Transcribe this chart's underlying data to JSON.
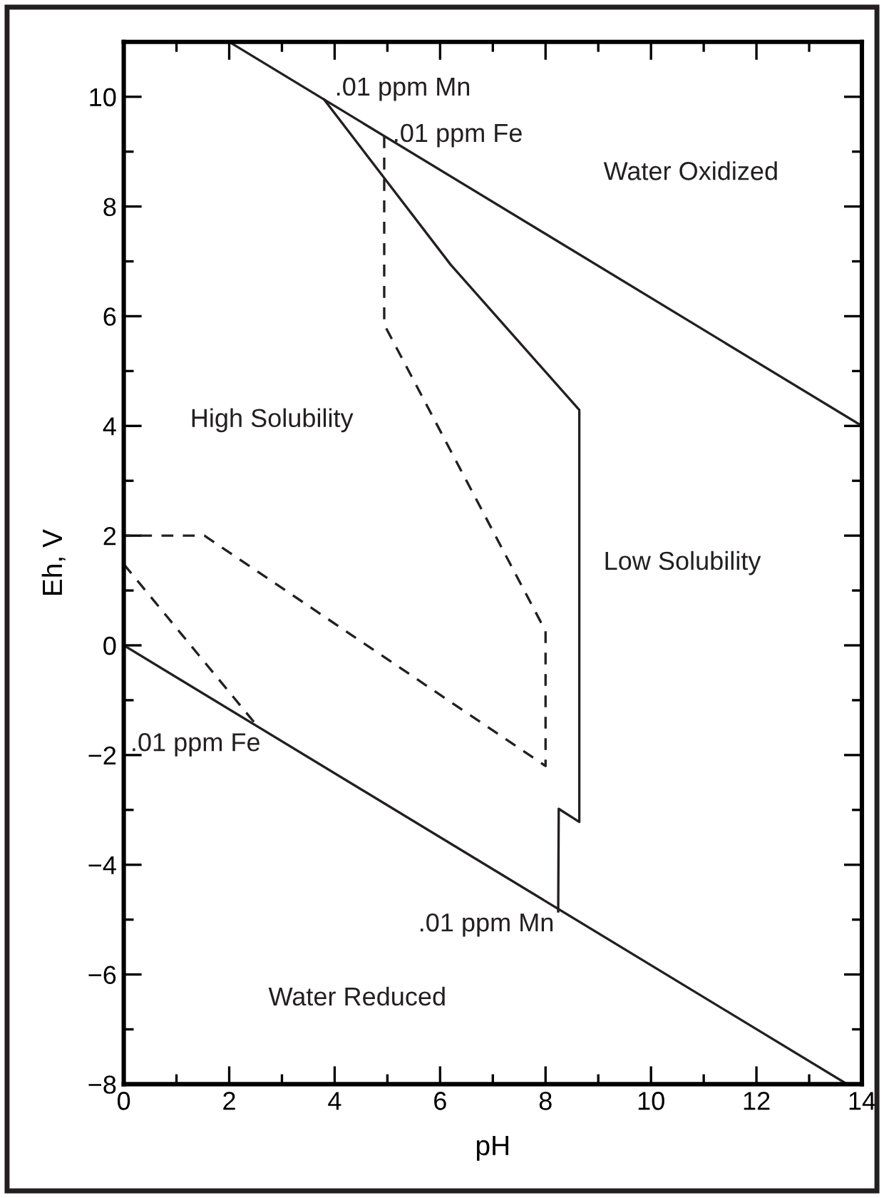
{
  "chart_data": {
    "type": "line",
    "xlabel": "pH",
    "ylabel": "Eh, V",
    "xlim": [
      0,
      14
    ],
    "ylim": [
      -8,
      11
    ],
    "xticks": [
      0,
      {
        "value": 1,
        "label": null
      },
      2,
      {
        "value": 3,
        "label": null
      },
      4,
      {
        "value": 5,
        "label": null
      },
      6,
      {
        "value": 7,
        "label": null
      },
      8,
      {
        "value": 9,
        "label": null
      },
      10,
      {
        "value": 11,
        "label": null
      },
      12,
      {
        "value": 13,
        "label": null
      },
      14
    ],
    "yticks": [
      {
        "value": -8,
        "label": "−8"
      },
      {
        "value": -7,
        "label": null
      },
      {
        "value": -6,
        "label": "−6"
      },
      {
        "value": -5,
        "label": null
      },
      {
        "value": -4,
        "label": "−4"
      },
      {
        "value": -3,
        "label": null
      },
      {
        "value": -2,
        "label": "−2"
      },
      {
        "value": -1,
        "label": null
      },
      0,
      {
        "value": 1,
        "label": null
      },
      2,
      {
        "value": 3,
        "label": null
      },
      4,
      {
        "value": 5,
        "label": null
      },
      6,
      {
        "value": 7,
        "label": null
      },
      8,
      {
        "value": 9,
        "label": null
      },
      10
    ],
    "grid": false,
    "legend": false,
    "marker": "none",
    "series": [
      {
        "color": "#231f20",
        "line_style": "solid",
        "x": [
          2.0,
          14
        ],
        "values": [
          11,
          4
        ]
      },
      {
        "color": "#231f20",
        "line_style": "solid",
        "x": [
          0,
          13.72
        ],
        "values": [
          0,
          -8
        ]
      },
      {
        "color": "#231f20",
        "line_style": "solid",
        "x": [
          3.8,
          6.2,
          8.64,
          8.64,
          8.25,
          8.24
        ],
        "values": [
          9.95,
          6.94,
          4.29,
          -3.22,
          -2.98,
          -4.85
        ]
      },
      {
        "color": "#231f20",
        "line_style": "dashed",
        "x": [
          4.94,
          4.94,
          8.0,
          8.0,
          1.53,
          0
        ],
        "values": [
          9.28,
          5.85,
          0.26,
          -2.2,
          2.0,
          2.0
        ]
      },
      {
        "color": "#231f20",
        "line_style": "dashed",
        "x": [
          0,
          2.54
        ],
        "values": [
          1.48,
          -1.48
        ]
      }
    ],
    "annotations": [
      ".01 ppm Mn",
      {
        "text": ".01 ppm Fe",
        "x": 5.1,
        "y": 9.3
      },
      "Water Oxidized",
      "High Solubility",
      "Low Solubility",
      ".01 ppm Fe",
      ".01 ppm Mn",
      "Water Reduced"
    ]
  }
}
